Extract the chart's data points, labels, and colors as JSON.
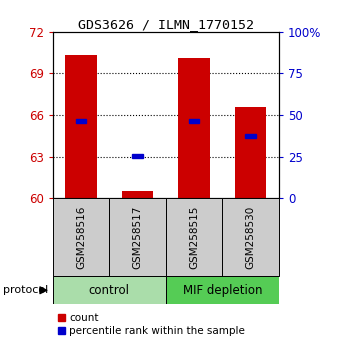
{
  "title": "GDS3626 / ILMN_1770152",
  "samples": [
    "GSM258516",
    "GSM258517",
    "GSM258515",
    "GSM258530"
  ],
  "bar_values": [
    70.3,
    60.55,
    70.1,
    66.6
  ],
  "percentile_values": [
    65.6,
    63.05,
    65.55,
    64.5
  ],
  "bar_color": "#cc0000",
  "percentile_color": "#0000cc",
  "ylim_left": [
    60,
    72
  ],
  "yticks_left": [
    60,
    63,
    66,
    69,
    72
  ],
  "ylim_right": [
    0,
    100
  ],
  "yticks_right": [
    0,
    25,
    50,
    75,
    100
  ],
  "ytick_labels_right": [
    "0",
    "25",
    "50",
    "75",
    "100%"
  ],
  "groups": [
    {
      "label": "control",
      "samples": [
        0,
        1
      ],
      "color": "#aaddaa"
    },
    {
      "label": "MIF depletion",
      "samples": [
        2,
        3
      ],
      "color": "#55cc55"
    }
  ],
  "group_row_color": "#cccccc",
  "bar_width": 0.55,
  "legend_count_label": "count",
  "legend_pct_label": "percentile rank within the sample",
  "protocol_label": "protocol"
}
